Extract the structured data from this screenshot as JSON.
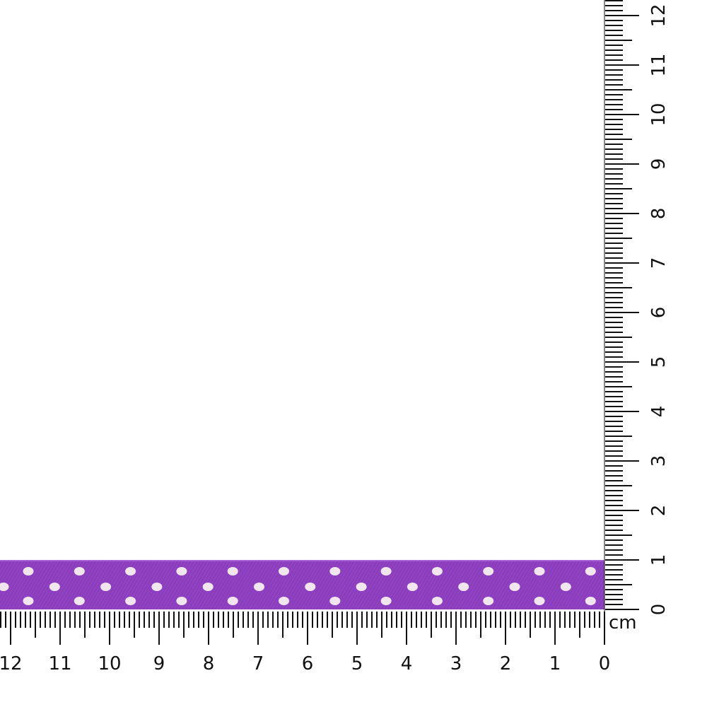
{
  "product": {
    "name": "purple polka dot satin ribbon",
    "ribbon_color": "#8b3dbe",
    "dot_color": "#f2e6ee",
    "width_cm": 1
  },
  "ruler": {
    "unit": "cm",
    "max_cm": 12,
    "labels": [
      "0",
      "1",
      "2",
      "3",
      "4",
      "5",
      "6",
      "7",
      "8",
      "9",
      "10",
      "11",
      "12"
    ],
    "tick_color": "#111111"
  }
}
